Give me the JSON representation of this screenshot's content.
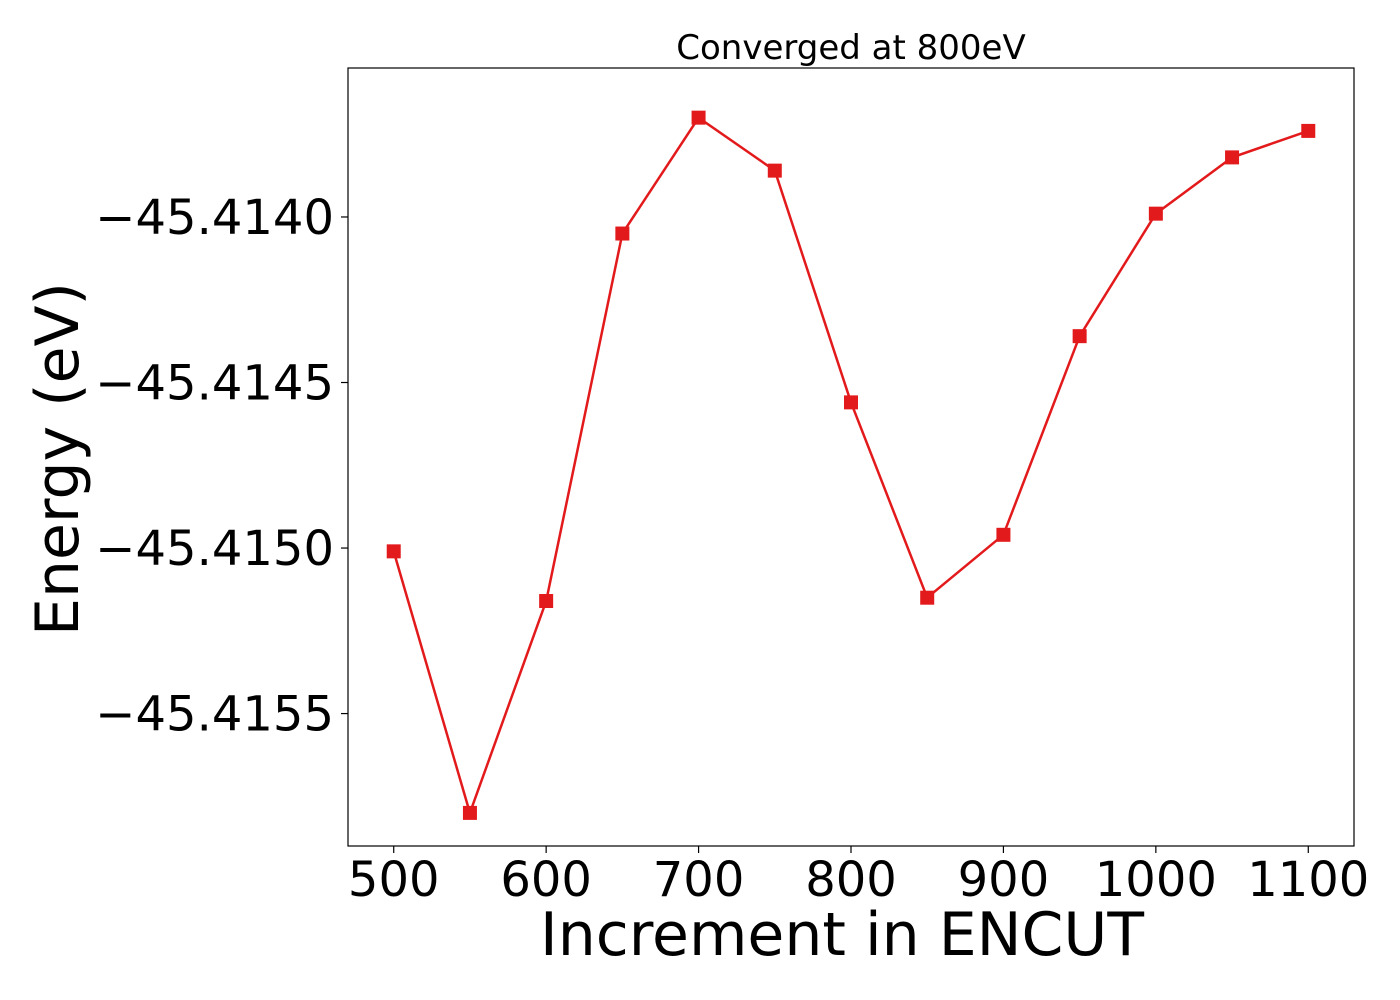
{
  "chart_data": {
    "type": "line",
    "title": "Converged at 800eV",
    "xlabel": "Increment in ENCUT",
    "ylabel": "Energy (eV)",
    "x": [
      500,
      550,
      600,
      650,
      700,
      750,
      800,
      850,
      900,
      950,
      1000,
      1050,
      1100
    ],
    "series": [
      {
        "values": [
          -45.41501,
          -45.4158,
          -45.41516,
          -45.41405,
          -45.4137,
          -45.41386,
          -45.41456,
          -45.41515,
          -45.41496,
          -45.41436,
          -45.41399,
          -45.41382,
          -45.41374
        ]
      }
    ],
    "xticks": [
      500,
      600,
      700,
      800,
      900,
      1000,
      1100
    ],
    "xtick_labels": [
      "500",
      "600",
      "700",
      "800",
      "900",
      "1000",
      "1100"
    ],
    "yticks": [
      -45.4155,
      -45.415,
      -45.4145,
      -45.414
    ],
    "ytick_labels": [
      "−45.4155",
      "−45.4150",
      "−45.4145",
      "−45.4140"
    ],
    "xlim": [
      470,
      1130
    ],
    "ylim": [
      -45.4159,
      -45.41355
    ],
    "grid": false,
    "marker": "square",
    "color": "#e31a1c"
  }
}
